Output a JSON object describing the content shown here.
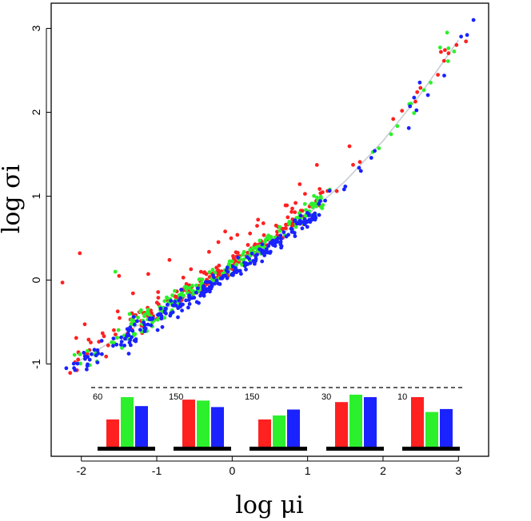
{
  "chart_data": {
    "type": "scatter",
    "title": "",
    "xlabel": "log μi",
    "ylabel": "log σi",
    "xlim": [
      -2.4,
      3.4
    ],
    "ylim": [
      -2.1,
      3.3
    ],
    "xticks": [
      -2,
      -1,
      0,
      1,
      2,
      3
    ],
    "yticks": [
      -1,
      0,
      1,
      2,
      3
    ],
    "xtick_labels": [
      "-2",
      "-1",
      "0",
      "1",
      "2",
      "3"
    ],
    "ytick_labels": [
      "-1",
      "0",
      "1",
      "2",
      "3"
    ],
    "grid": false,
    "fit_curve": {
      "name": "smooth fit",
      "color": "#c8ccd4",
      "x": [
        -2.1,
        -1.5,
        -1.0,
        -0.5,
        0.0,
        0.5,
        1.0,
        1.5,
        2.0,
        2.5,
        3.0
      ],
      "y": [
        -1.0,
        -0.68,
        -0.4,
        -0.14,
        0.14,
        0.44,
        0.78,
        1.18,
        1.66,
        2.22,
        2.86
      ]
    },
    "series": [
      {
        "name": "red",
        "color": "#ff2020",
        "n": 240,
        "outliers": [
          [
            -2.25,
            -0.03
          ],
          [
            -2.02,
            0.32
          ],
          [
            -1.5,
            0.05
          ]
        ]
      },
      {
        "name": "green",
        "color": "#2cf02c",
        "n": 240,
        "outliers": [
          [
            -1.55,
            0.1
          ],
          [
            2.85,
            2.95
          ]
        ]
      },
      {
        "name": "blue",
        "color": "#1a22ff",
        "n": 260,
        "outliers": [
          [
            3.2,
            3.1
          ],
          [
            -2.2,
            -1.05
          ]
        ]
      }
    ],
    "reference_line": {
      "style": "dashed",
      "color": "#000000"
    },
    "insets": [
      {
        "label": "60",
        "values": [
          0.55,
          1.0,
          0.82
        ]
      },
      {
        "label": "150",
        "values": [
          0.95,
          0.93,
          0.8
        ]
      },
      {
        "label": "150",
        "values": [
          0.55,
          0.63,
          0.75
        ]
      },
      {
        "label": "30",
        "values": [
          0.9,
          1.05,
          1.0
        ]
      },
      {
        "label": "10",
        "values": [
          1.0,
          0.7,
          0.76
        ]
      }
    ],
    "inset_colors": [
      "#ff2020",
      "#2cf02c",
      "#1a22ff"
    ]
  }
}
